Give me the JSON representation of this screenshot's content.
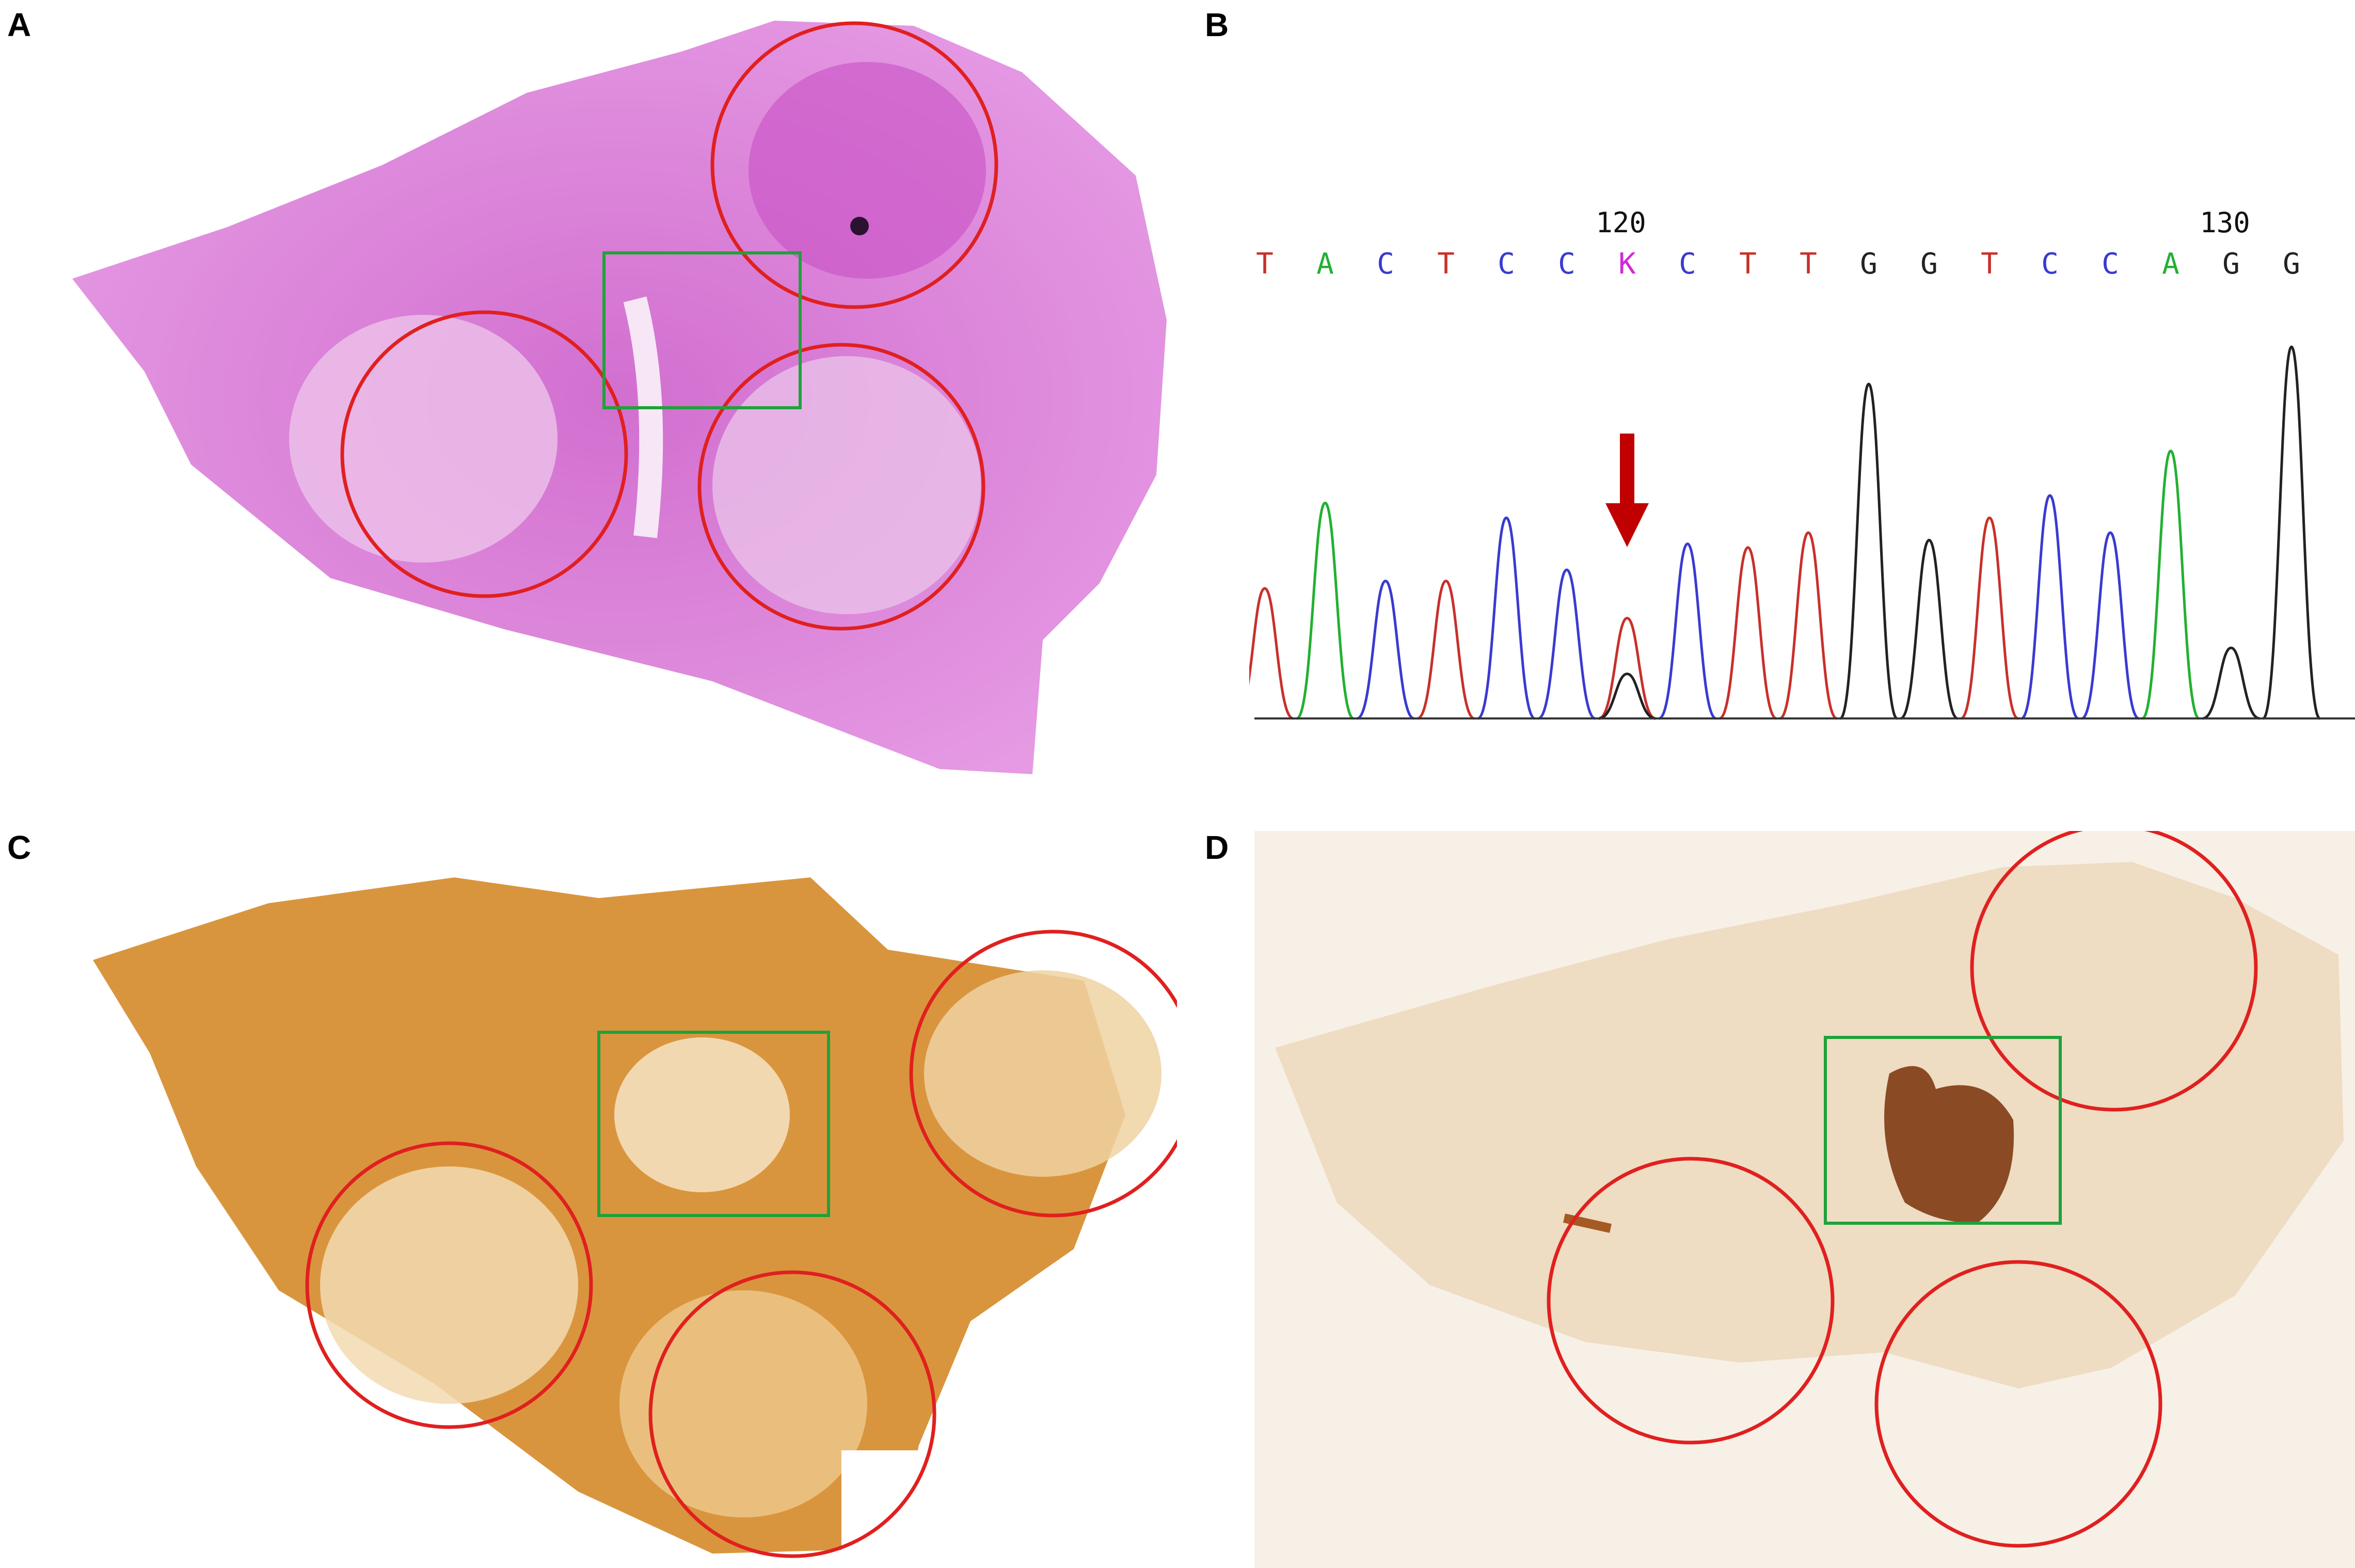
{
  "figure": {
    "panels": [
      {
        "letter": "A",
        "stain": "H&E",
        "base_color": "#d86ad4"
      },
      {
        "letter": "B"
      },
      {
        "letter": "C",
        "base_color": "#d9953e"
      },
      {
        "letter": "D",
        "base_color": "#eedcc3"
      }
    ],
    "annotation_colors": {
      "tumor_circle": "#e0201f",
      "box": "#1fa23a",
      "arrow": "#c00000"
    }
  },
  "chromatogram": {
    "position_labels": [
      "120",
      "130"
    ],
    "sequence": [
      {
        "base": "T",
        "color": "#c8302a"
      },
      {
        "base": "A",
        "color": "#22b032"
      },
      {
        "base": "C",
        "color": "#3a3ad0"
      },
      {
        "base": "T",
        "color": "#c8302a"
      },
      {
        "base": "C",
        "color": "#3a3ad0"
      },
      {
        "base": "C",
        "color": "#3a3ad0"
      },
      {
        "base": "K",
        "color": "#d22ad2"
      },
      {
        "base": "C",
        "color": "#3a3ad0"
      },
      {
        "base": "T",
        "color": "#c8302a"
      },
      {
        "base": "T",
        "color": "#c8302a"
      },
      {
        "base": "G",
        "color": "#222222"
      },
      {
        "base": "G",
        "color": "#222222"
      },
      {
        "base": "T",
        "color": "#c8302a"
      },
      {
        "base": "C",
        "color": "#3a3ad0"
      },
      {
        "base": "C",
        "color": "#3a3ad0"
      },
      {
        "base": "A",
        "color": "#22b032"
      },
      {
        "base": "G",
        "color": "#222222"
      },
      {
        "base": "G",
        "color": "#222222"
      }
    ],
    "peak_heights": [
      0.35,
      0.58,
      0.37,
      0.37,
      0.54,
      0.4,
      0.27,
      0.47,
      0.46,
      0.5,
      0.9,
      0.48,
      0.54,
      0.6,
      0.5,
      0.72,
      0.19,
      1.0
    ],
    "secondary_peak": {
      "index": 6,
      "base": "G",
      "height": 0.12
    },
    "mutation_arrow_index": 6
  }
}
